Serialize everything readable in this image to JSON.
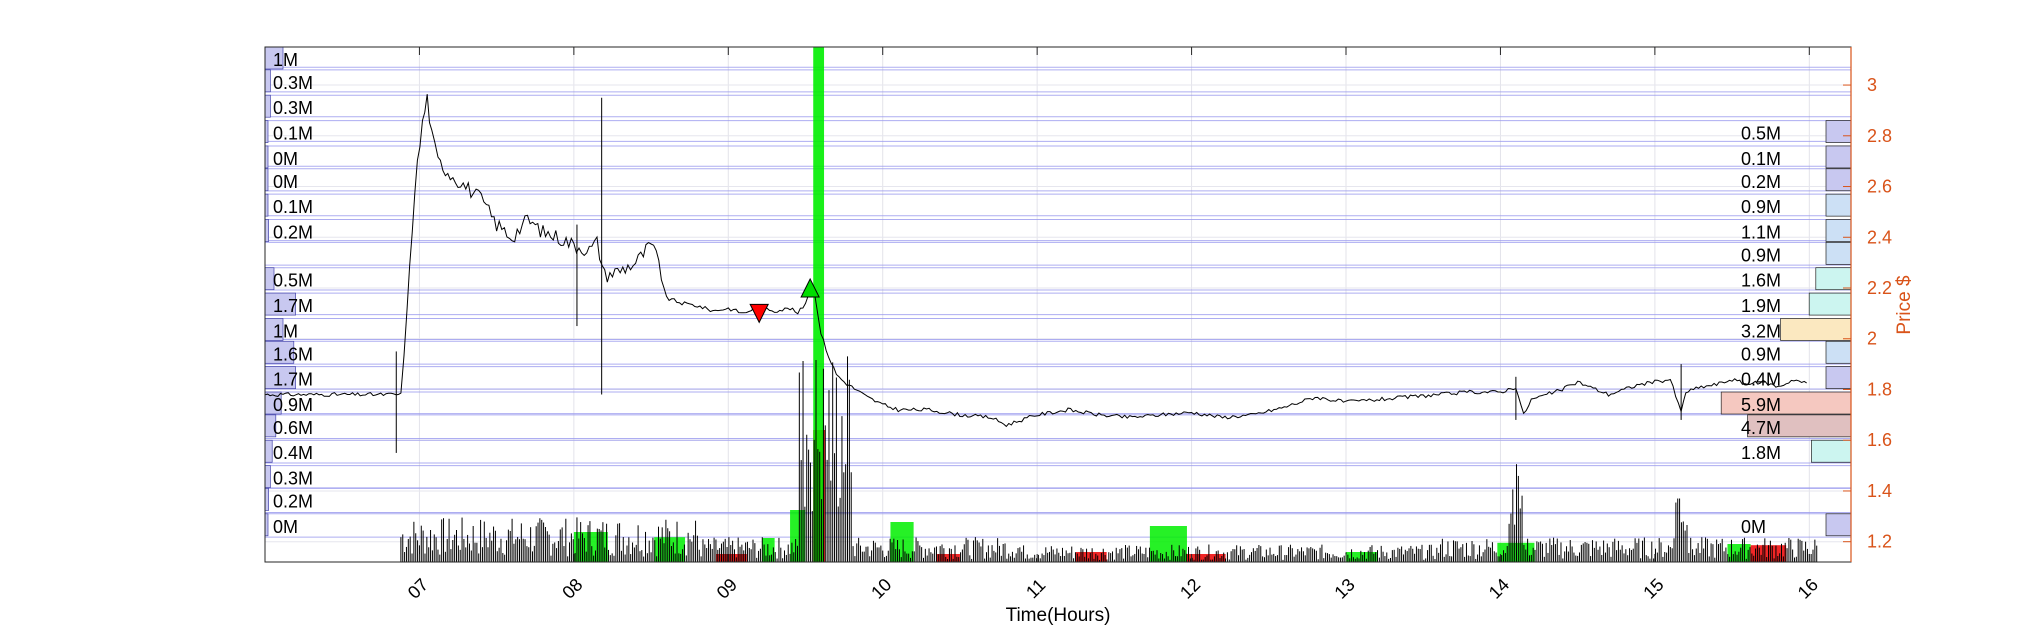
{
  "chart_data": {
    "type": "line",
    "xlabel": "Time(Hours)",
    "ylabel": "Price $",
    "x_ticks": [
      "07",
      "08",
      "09",
      "10",
      "11",
      "12",
      "13",
      "14",
      "15",
      "16"
    ],
    "x_range": [
      6.0,
      16.27
    ],
    "y_ticks": [
      "1.2",
      "1.4",
      "1.6",
      "1.8",
      "2",
      "2.2",
      "2.4",
      "2.6",
      "2.8",
      "3"
    ],
    "y_range": [
      1.12,
      3.15
    ],
    "grid": true,
    "price_series": {
      "name": "Price",
      "x": [
        6.0,
        6.85,
        6.88,
        6.92,
        6.97,
        7.02,
        7.05,
        7.08,
        7.12,
        7.2,
        7.3,
        7.4,
        7.5,
        7.6,
        7.7,
        7.8,
        7.9,
        8.0,
        8.1,
        8.15,
        8.2,
        8.3,
        8.4,
        8.5,
        8.55,
        8.6,
        8.7,
        8.8,
        8.9,
        9.0,
        9.1,
        9.2,
        9.3,
        9.4,
        9.45,
        9.5,
        9.53,
        9.56,
        9.6,
        9.65,
        9.7,
        9.75,
        9.8,
        9.9,
        10.0,
        10.1,
        10.3,
        10.5,
        10.7,
        10.8,
        11.0,
        11.2,
        11.4,
        11.6,
        11.8,
        12.0,
        12.2,
        12.4,
        12.6,
        12.8,
        13.0,
        13.2,
        13.4,
        13.6,
        13.8,
        14.0,
        14.1,
        14.15,
        14.2,
        14.4,
        14.5,
        14.7,
        14.9,
        15.1,
        15.17,
        15.2,
        15.3,
        15.4,
        15.5,
        15.6,
        15.7,
        15.8,
        15.9,
        16.0
      ],
      "y": [
        1.78,
        1.78,
        1.78,
        2.1,
        2.6,
        2.85,
        2.95,
        2.8,
        2.7,
        2.65,
        2.6,
        2.55,
        2.45,
        2.4,
        2.47,
        2.42,
        2.4,
        2.37,
        2.35,
        2.38,
        2.25,
        2.27,
        2.3,
        2.37,
        2.3,
        2.16,
        2.14,
        2.13,
        2.11,
        2.12,
        2.1,
        2.13,
        2.11,
        2.12,
        2.1,
        2.14,
        2.2,
        2.18,
        2.02,
        1.93,
        1.86,
        1.83,
        1.81,
        1.77,
        1.74,
        1.72,
        1.72,
        1.7,
        1.69,
        1.66,
        1.7,
        1.72,
        1.7,
        1.69,
        1.7,
        1.71,
        1.69,
        1.7,
        1.73,
        1.77,
        1.75,
        1.76,
        1.77,
        1.78,
        1.79,
        1.79,
        1.81,
        1.7,
        1.76,
        1.8,
        1.83,
        1.78,
        1.82,
        1.84,
        1.71,
        1.79,
        1.81,
        1.82,
        1.84,
        1.82,
        1.83,
        1.81,
        1.84,
        1.82
      ]
    },
    "volume_profile_left": {
      "labels": [
        "1M",
        "0.3M",
        "0.3M",
        "0.1M",
        "0M",
        "0M",
        "0.1M",
        "0.2M",
        "0.5M",
        "1.7M",
        "1M",
        "1.6M",
        "1.7M",
        "0.9M",
        "0.6M",
        "0.4M",
        "0.3M",
        "0.2M",
        "0M"
      ],
      "price_levels": [
        3.15,
        3.06,
        2.96,
        2.86,
        2.76,
        2.67,
        2.57,
        2.47,
        2.28,
        2.18,
        2.08,
        1.99,
        1.89,
        1.79,
        1.7,
        1.6,
        1.5,
        1.41,
        1.31
      ],
      "values_m": [
        1.0,
        0.3,
        0.3,
        0.1,
        0.0,
        0.0,
        0.1,
        0.2,
        0.5,
        1.7,
        1.0,
        1.6,
        1.7,
        0.9,
        0.6,
        0.4,
        0.3,
        0.2,
        0.0
      ]
    },
    "volume_profile_right": {
      "labels": [
        "0.5M",
        "0.1M",
        "0.2M",
        "0.9M",
        "1.1M",
        "0.9M",
        "1.6M",
        "1.9M",
        "3.2M",
        "0.9M",
        "0.4M",
        "5.9M",
        "4.7M",
        "1.8M",
        "0M"
      ],
      "price_levels": [
        2.86,
        2.76,
        2.67,
        2.57,
        2.47,
        2.38,
        2.28,
        2.18,
        2.08,
        1.99,
        1.89,
        1.79,
        1.7,
        1.6,
        1.31
      ],
      "values_m": [
        0.5,
        0.1,
        0.2,
        0.9,
        1.1,
        0.9,
        1.6,
        1.9,
        3.2,
        0.9,
        0.4,
        5.9,
        4.7,
        1.8,
        0.0
      ],
      "fill_colors": [
        "#c8c8f0",
        "#c8c8f0",
        "#c8c8f0",
        "#cce0f5",
        "#cce0f5",
        "#cce0f5",
        "#ccf5f0",
        "#ccf5f0",
        "#fbe8c0",
        "#cce0f5",
        "#c8c8f0",
        "#f5c8c0",
        "#e0c0c0",
        "#ccf5f0",
        "#c8c8f0"
      ]
    },
    "volume_bars": {
      "green_blocks": [
        [
          8.0,
          8.22,
          0.75
        ],
        [
          8.52,
          8.72,
          0.62
        ],
        [
          9.22,
          9.3,
          0.6
        ],
        [
          9.4,
          9.5,
          1.3
        ],
        [
          10.05,
          10.2,
          1.0
        ],
        [
          11.73,
          11.97,
          0.9
        ],
        [
          13.98,
          14.22,
          0.48
        ],
        [
          13.0,
          13.2,
          0.25
        ],
        [
          15.47,
          15.62,
          0.45
        ]
      ],
      "red_blocks": [
        [
          9.55,
          9.63,
          3.3
        ],
        [
          8.92,
          9.12,
          0.2
        ],
        [
          11.25,
          11.45,
          0.25
        ],
        [
          11.97,
          12.22,
          0.2
        ],
        [
          15.62,
          15.85,
          0.42
        ],
        [
          10.35,
          10.5,
          0.2
        ]
      ],
      "big_green_spike_x": [
        9.55,
        9.62
      ]
    },
    "markers": [
      {
        "type": "sell",
        "x": 9.2,
        "y": 2.1,
        "color": "#ff0000"
      },
      {
        "type": "buy",
        "x": 9.53,
        "y": 2.2,
        "color": "#00dd00"
      }
    ],
    "colors": {
      "price_axis": "#D95319",
      "grid": "#d9d9f2",
      "profile_line": "#6666dd",
      "green": "#00ee00",
      "red": "#ee0000"
    }
  }
}
